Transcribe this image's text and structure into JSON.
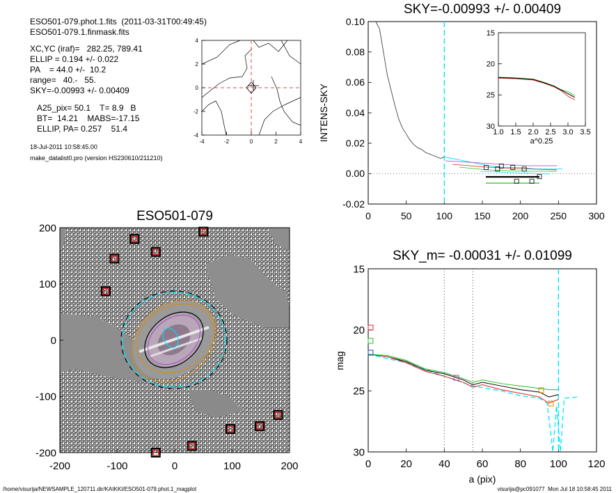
{
  "header": {
    "file_line": "ESO501-079.phot.1.fits  (2011-03-31T00:49:45)",
    "mask_line": "ESO501-079.1.finmask.fits",
    "xcyc": "XC,YC (iraf)=   282.25, 789.41",
    "ellip": "ELLIP = 0.194 +/- 0.022",
    "pa": "PA    = 44.0 +/-  10.2",
    "range": "range=   40.-   55.",
    "sky": "SKY=-0.00993 +/- 0.00409",
    "a25": "A25_pix= 50.1    T= 8.9   B",
    "bt": "BT=  14.21    MABS=-17.15",
    "ellip_pa": "ELLIP, PA= 0.257    51.4",
    "date": "18-Jul-2011 10:58:45.00",
    "program": "make_datalist0.pro (version HS230610/211210)"
  },
  "footer": {
    "path": "/home/visurija/NEWSAMPLE_120711.dir/KAIKKI/ESO501-079.phot.1_magplot",
    "user": "visurija@pc091077  Mon Jul 18 10:58:45 2011"
  },
  "colors": {
    "cyan": "#00e5ff",
    "red": "#e02020",
    "green": "#20c020",
    "purple": "#a040c0",
    "orange": "#e08a00",
    "gray": "#8a8a8a"
  },
  "chart_data": [
    {
      "id": "contour",
      "type": "line",
      "xlim": [
        -4,
        4
      ],
      "ylim": [
        -4,
        4
      ],
      "xticks": [
        "-4",
        "-2",
        "0",
        "2",
        "4"
      ],
      "yticks": [
        "4",
        "2",
        "0",
        "-2",
        "-4"
      ]
    },
    {
      "id": "sky_profile",
      "type": "line",
      "title": "SKY=-0.00993 +/- 0.00409",
      "ylabel": "INTENS-SKY",
      "xlim": [
        0,
        300
      ],
      "ylim": [
        -0.02,
        0.1
      ],
      "xticks": [
        "0",
        "50",
        "100",
        "150",
        "200",
        "250",
        "300"
      ],
      "yticks": [
        "0.10",
        "0.08",
        "0.06",
        "0.04",
        "0.02",
        "0.00",
        "-0.02"
      ],
      "vline": 100,
      "series": [
        {
          "values": [
            [
              10,
              0.115
            ],
            [
              15,
              0.095
            ],
            [
              20,
              0.08
            ],
            [
              25,
              0.065
            ],
            [
              30,
              0.055
            ],
            [
              35,
              0.045
            ],
            [
              40,
              0.036
            ],
            [
              45,
              0.03
            ],
            [
              50,
              0.026
            ],
            [
              55,
              0.022
            ],
            [
              60,
              0.019
            ],
            [
              65,
              0.017
            ],
            [
              70,
              0.016
            ],
            [
              75,
              0.014
            ],
            [
              80,
              0.013
            ],
            [
              85,
              0.012
            ],
            [
              90,
              0.011
            ],
            [
              95,
              0.01
            ],
            [
              100,
              0.011
            ]
          ]
        },
        {
          "values": [
            [
              100,
              0.011
            ],
            [
              110,
              0.01
            ],
            [
              120,
              0.009
            ],
            [
              130,
              0.008
            ],
            [
              140,
              0.007
            ],
            [
              150,
              0.006
            ],
            [
              160,
              0.005
            ],
            [
              180,
              0.004
            ],
            [
              200,
              0.004
            ],
            [
              220,
              0.003
            ],
            [
              240,
              0.003
            ],
            [
              255,
              0.003
            ]
          ]
        }
      ],
      "squares": [
        [
          155,
          0.004
        ],
        [
          170,
          0.003
        ],
        [
          175,
          0.005
        ],
        [
          190,
          0.004
        ],
        [
          195,
          -0.005
        ],
        [
          205,
          0.003
        ],
        [
          215,
          -0.005
        ],
        [
          225,
          -0.002
        ]
      ],
      "inset": {
        "xlabel": "a^0.25",
        "xlim": [
          1.0,
          3.5
        ],
        "ylim": [
          15,
          30
        ],
        "xticks": [
          "1.0",
          "1.5",
          "2.0",
          "2.5",
          "3.0",
          "3.5"
        ],
        "yticks": [
          "15",
          "20",
          "25",
          "30"
        ],
        "values": [
          [
            1.0,
            22.2
          ],
          [
            1.5,
            22.3
          ],
          [
            2.0,
            22.5
          ],
          [
            2.3,
            23.0
          ],
          [
            2.6,
            23.6
          ],
          [
            2.8,
            24.2
          ],
          [
            3.0,
            24.8
          ],
          [
            3.2,
            25.4
          ]
        ]
      }
    },
    {
      "id": "image",
      "type": "heatmap",
      "title": "ESO501-079",
      "xlim": [
        -200,
        200
      ],
      "ylim": [
        -200,
        200
      ],
      "xticks": [
        "-200",
        "-100",
        "0",
        "100",
        "200"
      ],
      "yticks": [
        "200",
        "100",
        "0",
        "-100",
        "-200"
      ],
      "stars": [
        [
          -120,
          87
        ],
        [
          -105,
          145
        ],
        [
          -70,
          180
        ],
        [
          -33,
          157
        ],
        [
          50,
          193
        ],
        [
          30,
          -188
        ],
        [
          -33,
          -200
        ],
        [
          97,
          -158
        ],
        [
          148,
          -153
        ],
        [
          180,
          -133
        ]
      ]
    },
    {
      "id": "mag_profile",
      "type": "line",
      "title": "SKY_m= -0.00031 +/- 0.01099",
      "xlabel": "a (pix)",
      "ylabel": "mag",
      "xlim": [
        0,
        120
      ],
      "ylim": [
        15,
        30
      ],
      "xticks": [
        "0",
        "20",
        "40",
        "60",
        "80",
        "100",
        "120"
      ],
      "yticks": [
        "15",
        "20",
        "25",
        "30"
      ],
      "vlines": [
        40,
        55
      ],
      "cyan_vline": 100,
      "series": [
        {
          "name": "black",
          "values": [
            [
              0,
              22.0
            ],
            [
              10,
              22.2
            ],
            [
              20,
              22.6
            ],
            [
              30,
              23.3
            ],
            [
              40,
              23.6
            ],
            [
              50,
              24.1
            ],
            [
              55,
              24.5
            ],
            [
              60,
              24.3
            ],
            [
              70,
              24.6
            ],
            [
              80,
              24.9
            ],
            [
              90,
              25.1
            ],
            [
              95,
              25.5
            ],
            [
              100,
              25.3
            ]
          ]
        },
        {
          "name": "red",
          "values": [
            [
              0,
              22.0
            ],
            [
              10,
              22.2
            ],
            [
              20,
              22.7
            ],
            [
              30,
              23.4
            ],
            [
              40,
              23.8
            ],
            [
              50,
              24.3
            ],
            [
              55,
              24.7
            ],
            [
              60,
              24.5
            ],
            [
              70,
              24.9
            ],
            [
              80,
              25.2
            ],
            [
              90,
              25.5
            ],
            [
              95,
              26.0
            ],
            [
              100,
              25.7
            ]
          ]
        },
        {
          "name": "green",
          "values": [
            [
              0,
              22.0
            ],
            [
              10,
              22.1
            ],
            [
              20,
              22.5
            ],
            [
              30,
              23.2
            ],
            [
              40,
              23.5
            ],
            [
              50,
              24.0
            ],
            [
              55,
              24.3
            ],
            [
              60,
              24.1
            ],
            [
              70,
              24.4
            ],
            [
              80,
              24.6
            ],
            [
              90,
              24.8
            ],
            [
              95,
              24.9
            ],
            [
              100,
              24.9
            ]
          ]
        }
      ],
      "cyan_dashed": [
        [
          0,
          22.0
        ],
        [
          20,
          22.7
        ],
        [
          40,
          23.8
        ],
        [
          55,
          24.6
        ],
        [
          70,
          25.0
        ],
        [
          80,
          25.4
        ],
        [
          90,
          25.6
        ],
        [
          94,
          26.0
        ],
        [
          96,
          28.5
        ],
        [
          97,
          30.5
        ],
        [
          99,
          26.2
        ],
        [
          101,
          30.5
        ],
        [
          103,
          25.6
        ],
        [
          110,
          25.5
        ]
      ]
    }
  ]
}
